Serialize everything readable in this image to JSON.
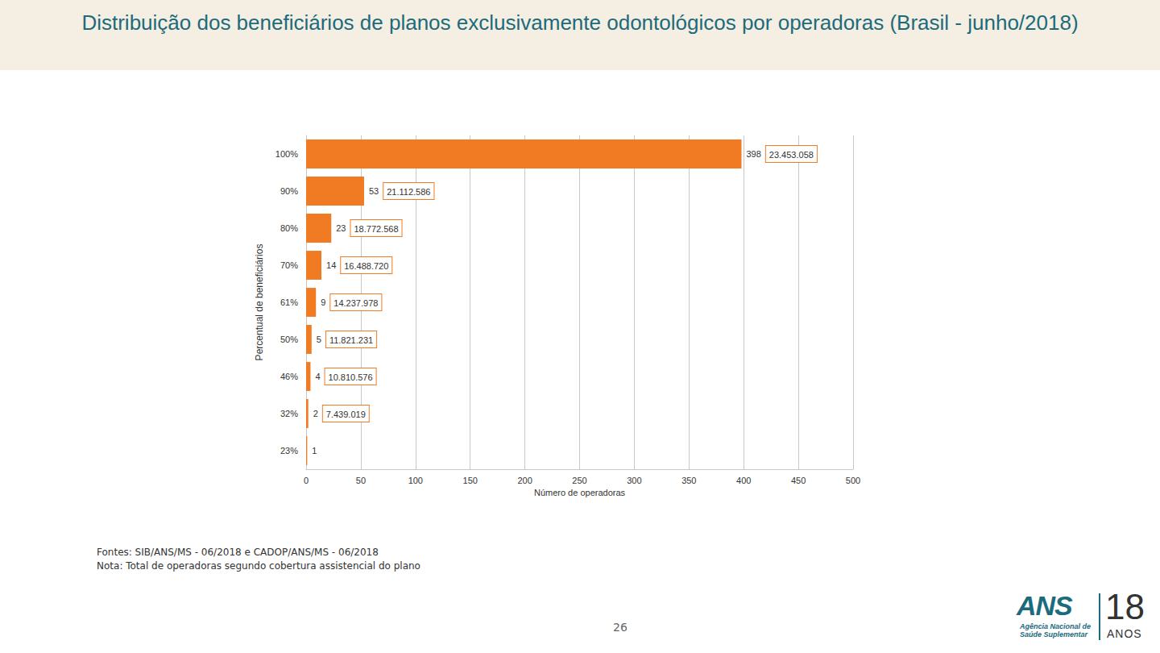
{
  "chart_data": {
    "type": "bar",
    "orientation": "horizontal",
    "title": "Distribuição dos beneficiários de planos exclusivamente odontológicos por operadoras (Brasil - junho/2018)",
    "xlabel": "Número de operadoras",
    "ylabel": "Percentual de beneficiários",
    "categories": [
      "100%",
      "90%",
      "80%",
      "70%",
      "61%",
      "50%",
      "46%",
      "32%",
      "23%"
    ],
    "values": [
      398,
      53,
      23,
      14,
      9,
      5,
      4,
      2,
      1
    ],
    "beneficiaries": [
      23453058,
      21112586,
      18772568,
      16488720,
      14237978,
      11821231,
      10810576,
      7439019,
      null
    ],
    "beneficiaries_labels": [
      "23.453.058",
      "21.112.586",
      "18.772.568",
      "16.488.720",
      "14.237.978",
      "11.821.231",
      "10.810.576",
      "7.439.019",
      null
    ],
    "color": "#f07b23",
    "xlim": [
      0,
      500
    ],
    "xticks": [
      0,
      50,
      100,
      150,
      200,
      250,
      300,
      350,
      400,
      450,
      500
    ],
    "grid": true,
    "data_labels": true
  },
  "page": {
    "sources": "Fontes: SIB/ANS/MS - 06/2018 e CADOP/ANS/MS - 06/2018",
    "note": "Nota: Total de operadoras segundo cobertura assistencial do plano",
    "page_number": "26",
    "logo": {
      "name": "ANS",
      "agency": "Agência Nacional de Saúde Suplementar",
      "years": "18",
      "years_word": "ANOS"
    }
  }
}
